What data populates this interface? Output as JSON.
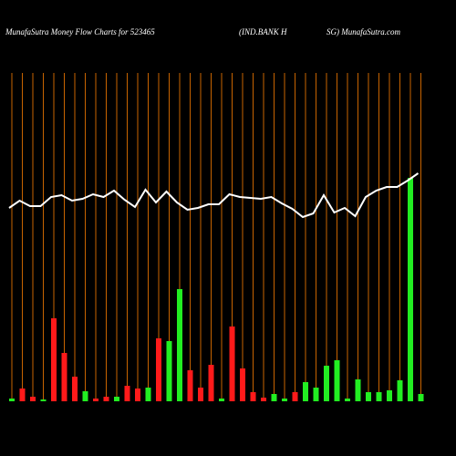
{
  "chart_data": {
    "type": "money-flow",
    "title": "MunafaSutra  Money Flow  Charts for 523465",
    "subtitle_left": "(IND.BANK H",
    "subtitle_right": "SG) MunafaSutra.com",
    "ylim": [
      0,
      440
    ],
    "bars": {
      "values": [
        3,
        14,
        5,
        2,
        91,
        53,
        27,
        11,
        3,
        5,
        5,
        17,
        14,
        15,
        69,
        66,
        123,
        34,
        15,
        40,
        3,
        82,
        36,
        10,
        4,
        8,
        3,
        10,
        21,
        15,
        39,
        45,
        3,
        24,
        10,
        10,
        12,
        23,
        245,
        8
      ],
      "colors": [
        "#22ee22",
        "#ff1a1a",
        "#ff1a1a",
        "#22ee22",
        "#ff1a1a",
        "#ff1a1a",
        "#ff1a1a",
        "#22ee22",
        "#ff1a1a",
        "#ff1a1a",
        "#22ee22",
        "#ff1a1a",
        "#ff1a1a",
        "#22ee22",
        "#ff1a1a",
        "#22ee22",
        "#22ee22",
        "#ff1a1a",
        "#ff1a1a",
        "#ff1a1a",
        "#22ee22",
        "#ff1a1a",
        "#ff1a1a",
        "#ff1a1a",
        "#ff1a1a",
        "#22ee22",
        "#22ee22",
        "#ff1a1a",
        "#22ee22",
        "#22ee22",
        "#22ee22",
        "#22ee22",
        "#22ee22",
        "#22ee22",
        "#22ee22",
        "#22ee22",
        "#22ee22",
        "#22ee22",
        "#22ee22",
        "#22ee22"
      ]
    },
    "line": {
      "color": "#ffffff",
      "values": [
        212,
        220,
        214,
        214,
        224,
        226,
        220,
        222,
        227,
        224,
        231,
        221,
        213,
        232,
        218,
        230,
        218,
        210,
        212,
        216,
        216,
        227,
        224,
        223,
        222,
        224,
        217,
        211,
        202,
        206,
        226,
        207,
        212,
        203,
        224,
        231,
        235,
        235,
        242,
        250
      ]
    },
    "grid_color": "#c86400"
  }
}
